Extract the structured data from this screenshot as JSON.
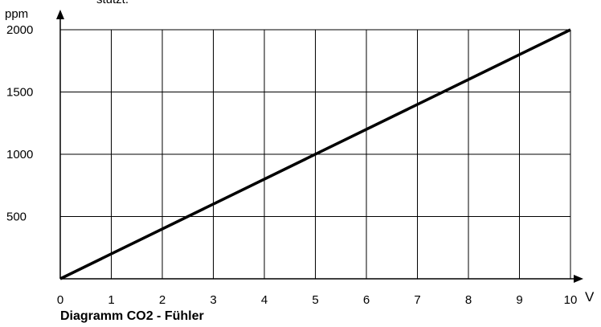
{
  "chart_data": {
    "type": "line",
    "title": "Diagramm CO2 - Fühler",
    "annotation": "stützt.",
    "y_label": "ppm",
    "x_label": "V",
    "x": [
      0,
      10
    ],
    "series": [
      {
        "name": "CO2",
        "color": "#000000",
        "values": [
          0,
          2000
        ]
      }
    ],
    "xlim": [
      0,
      10
    ],
    "xticks": [
      0,
      1,
      2,
      3,
      4,
      5,
      6,
      7,
      8,
      9,
      10
    ],
    "ylim": [
      0,
      2000
    ],
    "yticks": [
      500,
      1000,
      1500,
      2000
    ],
    "grid": true
  }
}
